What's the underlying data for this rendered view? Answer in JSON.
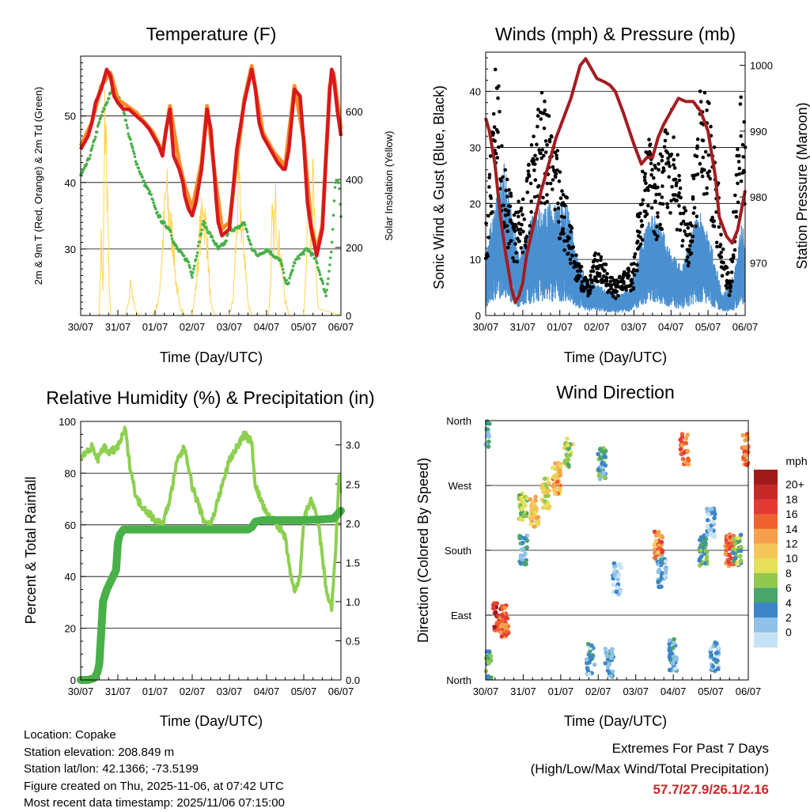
{
  "colors": {
    "temp_2m": "#d7191c",
    "temp_9m": "#fb8c28",
    "dewpoint": "#48b048",
    "solar": "#ffd54f",
    "wind": "#4a90d0",
    "gust": "#000000",
    "pressure": "#a31d21",
    "rh": "#8dd050",
    "precip": "#48b048",
    "extremes": "#c62828"
  },
  "x_ticks": [
    "30/07",
    "31/07",
    "01/07",
    "02/07",
    "03/07",
    "04/07",
    "05/07",
    "06/07"
  ],
  "x_label": "Time (Day/UTC)",
  "chart_data": [
    {
      "id": "temperature",
      "type": "line",
      "title": "Temperature (F)",
      "ylabel_left": "2m & 9m T (Red, Orange) & 2m Td (Green)",
      "ylabel_right": "Solar Insolation (Yellow)",
      "xlim": [
        0,
        7
      ],
      "ylim_left": [
        20,
        59
      ],
      "ylim_right": [
        0,
        763
      ],
      "yticks_left": [
        30,
        40,
        50
      ],
      "yticks_right": [
        0,
        200,
        400,
        600
      ],
      "series": [
        {
          "name": "2m T",
          "axis": "left",
          "color": "#d7191c",
          "x": [
            0,
            0.1,
            0.2,
            0.3,
            0.4,
            0.55,
            0.7,
            0.8,
            0.9,
            1.0,
            1.15,
            1.3,
            1.5,
            1.7,
            1.85,
            1.95,
            2.1,
            2.2,
            2.3,
            2.4,
            2.5,
            2.65,
            2.7,
            2.75,
            2.8,
            2.9,
            3.0,
            3.1,
            3.25,
            3.4,
            3.5,
            3.6,
            3.65,
            3.7,
            3.8,
            4.0,
            4.2,
            4.4,
            4.6,
            4.7,
            4.8,
            4.9,
            5.0,
            5.1,
            5.2,
            5.3,
            5.45,
            5.5,
            5.6,
            5.75,
            5.9,
            6.0,
            6.1,
            6.2,
            6.35,
            6.5,
            6.6,
            6.7,
            6.75,
            6.8,
            6.9,
            7.0
          ],
          "y": [
            45,
            46,
            47,
            49,
            52,
            54,
            57,
            56,
            53,
            52,
            51,
            51,
            50,
            49,
            48,
            47,
            45.5,
            44,
            48,
            51,
            44,
            42,
            41,
            40,
            38,
            36,
            35,
            37,
            42,
            51,
            48,
            41,
            37,
            34,
            32,
            33,
            45,
            52,
            57,
            54,
            49,
            47,
            46,
            45,
            44,
            43,
            42,
            42,
            45,
            54,
            53,
            46,
            37,
            33,
            29,
            33,
            44,
            54,
            57,
            56,
            51,
            47
          ]
        },
        {
          "name": "9m T",
          "axis": "left",
          "color": "#fb8c28",
          "x": [
            0,
            0.3,
            0.55,
            0.8,
            1.0,
            1.5,
            1.95,
            2.2,
            2.4,
            2.65,
            2.8,
            3.0,
            3.25,
            3.4,
            3.6,
            3.8,
            4.0,
            4.4,
            4.6,
            4.9,
            5.2,
            5.5,
            5.75,
            6.0,
            6.2,
            6.35,
            6.5,
            6.7,
            6.8,
            7.0
          ],
          "y": [
            45.5,
            49,
            54.5,
            56.5,
            52.5,
            50.5,
            47.5,
            44.5,
            51.5,
            43,
            39.5,
            36,
            43,
            51.5,
            41.5,
            33,
            34,
            52.5,
            57.5,
            47.5,
            44.5,
            42.5,
            54.5,
            46.5,
            33.5,
            30,
            33.5,
            54.5,
            56.5,
            48
          ]
        },
        {
          "name": "2m Td",
          "axis": "left",
          "color": "#48b048",
          "x": [
            0,
            0.1,
            0.25,
            0.4,
            0.55,
            0.7,
            0.85,
            1.0,
            1.15,
            1.3,
            1.5,
            1.7,
            1.9,
            2.0,
            2.2,
            2.4,
            2.5,
            2.6,
            2.75,
            2.9,
            3.0,
            3.15,
            3.3,
            3.5,
            3.7,
            3.9,
            4.0,
            4.2,
            4.4,
            4.5,
            4.6,
            4.8,
            5.0,
            5.2,
            5.4,
            5.5,
            5.6,
            5.75,
            5.9,
            6.1,
            6.25,
            6.35,
            6.5,
            6.6,
            6.75,
            6.85,
            6.95,
            7.0
          ],
          "y": [
            41,
            42,
            44,
            47,
            50,
            52,
            54,
            53,
            51,
            47,
            43,
            40,
            38,
            36,
            34,
            33,
            31,
            30,
            29,
            28,
            26,
            30,
            34,
            32,
            30,
            31,
            33,
            33,
            34,
            32,
            30,
            29,
            30,
            29,
            28,
            25,
            25,
            28,
            29,
            30,
            29,
            28,
            25,
            23,
            30,
            40,
            40,
            35
          ]
        },
        {
          "name": "Solar",
          "axis": "right",
          "color": "#ffd54f",
          "x": [
            0,
            0.5,
            0.55,
            0.6,
            0.65,
            0.7,
            0.75,
            0.8,
            0.9,
            1.0,
            1.2,
            1.3,
            1.35,
            1.4,
            1.5,
            1.6,
            1.95,
            2.1,
            2.2,
            2.3,
            2.4,
            2.5,
            2.55,
            2.65,
            2.8,
            3.0,
            3.1,
            3.2,
            3.3,
            3.4,
            3.45,
            3.5,
            3.6,
            3.8,
            4.0,
            4.1,
            4.2,
            4.25,
            4.3,
            4.35,
            4.4,
            4.5,
            4.6,
            4.8,
            5.05,
            5.1,
            5.15,
            5.2,
            5.25,
            5.3,
            5.4,
            5.5,
            5.6,
            5.8,
            6.0,
            6.05,
            6.1,
            6.15,
            6.2,
            6.25,
            6.3,
            6.35,
            6.4,
            7.0
          ],
          "y": [
            0,
            0,
            300,
            80,
            750,
            600,
            200,
            0,
            0,
            0,
            0,
            50,
            150,
            60,
            10,
            0,
            0,
            60,
            250,
            480,
            350,
            270,
            150,
            40,
            0,
            0,
            100,
            300,
            400,
            300,
            150,
            40,
            0,
            0,
            0,
            60,
            330,
            500,
            380,
            300,
            250,
            50,
            0,
            0,
            0,
            100,
            350,
            300,
            420,
            300,
            200,
            60,
            0,
            0,
            0,
            150,
            380,
            450,
            300,
            520,
            280,
            100,
            20,
            0
          ]
        }
      ]
    },
    {
      "id": "winds",
      "type": "scatter",
      "title": "Winds (mph) & Pressure (mb)",
      "ylabel_left": "Sonic Wind & Gust (Blue, Black)",
      "ylabel_right": "Station Pressure (Maroon)",
      "xlim": [
        0,
        7
      ],
      "ylim_left": [
        0,
        47
      ],
      "ylim_right": [
        962,
        1002
      ],
      "yticks_left": [
        0,
        10,
        20,
        30,
        40
      ],
      "yticks_right": [
        970,
        980,
        990,
        1000
      ],
      "series": [
        {
          "name": "Sonic Wind",
          "axis": "left",
          "color": "#4a90d0",
          "type": "band",
          "x": [
            0,
            0.3,
            0.5,
            0.9,
            1.3,
            1.7,
            2.2,
            2.5,
            2.8,
            3.2,
            3.6,
            3.9,
            4.3,
            4.6,
            5.0,
            5.3,
            5.6,
            5.8,
            6.1,
            6.4,
            6.7,
            6.9,
            7.0
          ],
          "y": [
            9,
            18,
            22,
            9,
            15,
            16,
            16,
            8,
            5,
            4,
            3,
            4,
            13,
            15,
            9,
            7,
            13,
            15,
            10,
            3,
            6,
            13,
            12
          ]
        },
        {
          "name": "Gust",
          "axis": "left",
          "color": "#000000",
          "type": "dots",
          "x": [
            0,
            0.2,
            0.3,
            0.4,
            0.5,
            0.6,
            0.8,
            1.0,
            1.3,
            1.5,
            1.7,
            1.8,
            2.0,
            2.3,
            2.5,
            2.8,
            3.0,
            3.2,
            3.5,
            3.7,
            4.0,
            4.2,
            4.4,
            4.6,
            4.8,
            5.0,
            5.3,
            5.5,
            5.7,
            5.9,
            6.2,
            6.4,
            6.6,
            6.8,
            6.9,
            7.0
          ],
          "y": [
            14,
            30,
            38,
            33,
            24,
            20,
            15,
            18,
            26,
            33,
            29,
            26,
            22,
            14,
            8,
            5,
            10,
            8,
            5,
            6,
            8,
            22,
            28,
            21,
            26,
            30,
            19,
            11,
            30,
            35,
            24,
            10,
            5,
            27,
            32,
            33
          ]
        },
        {
          "name": "Station Pressure",
          "axis": "right",
          "color": "#a31d21",
          "x": [
            0,
            0.1,
            0.25,
            0.4,
            0.55,
            0.7,
            0.8,
            0.9,
            1.0,
            1.1,
            1.3,
            1.5,
            1.7,
            1.9,
            2.1,
            2.3,
            2.45,
            2.55,
            2.7,
            2.9,
            3.0,
            3.2,
            3.35,
            3.5,
            3.7,
            4.0,
            4.2,
            4.35,
            4.5,
            4.65,
            4.8,
            4.9,
            5.0,
            5.1,
            5.2,
            5.4,
            5.6,
            5.8,
            6.0,
            6.2,
            6.3,
            6.5,
            6.65,
            6.8,
            6.9,
            7.0
          ],
          "y": [
            992,
            990,
            985,
            977,
            971,
            966,
            964,
            965,
            967,
            971,
            976,
            981,
            985,
            989,
            992,
            995,
            998,
            1000,
            1001,
            999,
            998,
            997.5,
            997,
            996,
            993,
            988,
            985,
            986,
            986,
            989,
            991,
            992,
            993,
            994,
            995,
            994.5,
            994.5,
            993,
            990,
            983,
            977,
            974,
            973,
            975,
            978,
            981
          ]
        }
      ]
    },
    {
      "id": "humidity",
      "type": "line",
      "title": "Relative Humidity (%) & Precipitation (in)",
      "ylabel": "Percent & Total Rainfall",
      "xlim": [
        0,
        7
      ],
      "ylim_left": [
        0,
        100
      ],
      "ylim_right": [
        0,
        3.3
      ],
      "yticks_left": [
        0,
        20,
        40,
        60,
        80,
        100
      ],
      "yticks_right": [
        "0.0",
        "0.5",
        "1.0",
        "1.5",
        "2.0",
        "2.5",
        "3.0"
      ],
      "series": [
        {
          "name": "RH",
          "axis": "left",
          "color": "#8dd050",
          "x": [
            0,
            0.15,
            0.3,
            0.45,
            0.6,
            0.8,
            1.0,
            1.2,
            1.3,
            1.5,
            1.8,
            2.0,
            2.2,
            2.4,
            2.6,
            2.8,
            3.0,
            3.3,
            3.5,
            3.7,
            4.0,
            4.2,
            4.4,
            4.6,
            4.7,
            5.0,
            5.3,
            5.5,
            5.6,
            5.75,
            5.9,
            6.0,
            6.2,
            6.4,
            6.6,
            6.75,
            6.85,
            6.95,
            7.0
          ],
          "y": [
            86,
            88,
            90,
            85,
            90,
            88,
            90,
            97,
            85,
            70,
            65,
            62,
            60,
            70,
            85,
            90,
            75,
            62,
            60,
            70,
            85,
            90,
            95,
            92,
            75,
            64,
            60,
            55,
            45,
            33,
            40,
            62,
            70,
            60,
            35,
            28,
            48,
            80,
            70
          ]
        },
        {
          "name": "Total Precipitation",
          "axis": "right",
          "color": "#48b048",
          "x": [
            0,
            0.2,
            0.35,
            0.4,
            0.45,
            0.5,
            0.55,
            0.6,
            0.7,
            0.85,
            0.95,
            1.0,
            1.05,
            1.15,
            1.5,
            2.0,
            3.0,
            4.5,
            4.6,
            4.7,
            4.9,
            5.5,
            6.0,
            6.5,
            6.8,
            7.0
          ],
          "y": [
            0,
            0,
            0.02,
            0.05,
            0.1,
            0.2,
            0.6,
            1.0,
            1.15,
            1.3,
            1.4,
            1.75,
            1.85,
            1.92,
            1.92,
            1.92,
            1.92,
            1.92,
            1.95,
            2.02,
            2.04,
            2.04,
            2.04,
            2.05,
            2.06,
            2.16
          ]
        }
      ]
    },
    {
      "id": "direction",
      "type": "scatter",
      "title": "Wind Direction",
      "ylabel": "Direction (Colored By Speed)",
      "xlim": [
        0,
        7
      ],
      "ylim": [
        0,
        360
      ],
      "yticks": [
        {
          "value": 0,
          "label": "North"
        },
        {
          "value": 90,
          "label": "East"
        },
        {
          "value": 180,
          "label": "South"
        },
        {
          "value": 270,
          "label": "West"
        },
        {
          "value": 360,
          "label": "North"
        }
      ],
      "colorbar_title": "mph",
      "colorbar_labels": [
        "20+",
        "18",
        "16",
        "14",
        "12",
        "10",
        "8",
        "6",
        "4",
        "2",
        "0"
      ],
      "colorbar_colors": [
        "#a01a1a",
        "#c62828",
        "#e53935",
        "#f0612f",
        "#f6a04d",
        "#f5c75a",
        "#e5e05a",
        "#92c850",
        "#4aa56a",
        "#3d85c8",
        "#8fc2e8",
        "#c6e3f5"
      ],
      "clusters": [
        {
          "x": 0.3,
          "y": 85,
          "speed": 18
        },
        {
          "x": 0.5,
          "y": 82,
          "speed": 16
        },
        {
          "x": 0.0,
          "y": 345,
          "speed": 4
        },
        {
          "x": 0.05,
          "y": 20,
          "speed": 6
        },
        {
          "x": 1.0,
          "y": 240,
          "speed": 8
        },
        {
          "x": 1.0,
          "y": 180,
          "speed": 4
        },
        {
          "x": 1.3,
          "y": 235,
          "speed": 12
        },
        {
          "x": 1.6,
          "y": 260,
          "speed": 10
        },
        {
          "x": 1.9,
          "y": 280,
          "speed": 13
        },
        {
          "x": 2.2,
          "y": 315,
          "speed": 9
        },
        {
          "x": 2.8,
          "y": 30,
          "speed": 3
        },
        {
          "x": 3.3,
          "y": 25,
          "speed": 3
        },
        {
          "x": 3.1,
          "y": 300,
          "speed": 5
        },
        {
          "x": 3.5,
          "y": 140,
          "speed": 2
        },
        {
          "x": 4.6,
          "y": 185,
          "speed": 15
        },
        {
          "x": 4.7,
          "y": 150,
          "speed": 3
        },
        {
          "x": 5.0,
          "y": 35,
          "speed": 3
        },
        {
          "x": 5.3,
          "y": 320,
          "speed": 16
        },
        {
          "x": 5.8,
          "y": 180,
          "speed": 6
        },
        {
          "x": 6.1,
          "y": 30,
          "speed": 3
        },
        {
          "x": 6.5,
          "y": 180,
          "speed": 16
        },
        {
          "x": 6.7,
          "y": 180,
          "speed": 7
        },
        {
          "x": 6.95,
          "y": 320,
          "speed": 16
        },
        {
          "x": 6.0,
          "y": 220,
          "speed": 2
        }
      ]
    }
  ],
  "info": {
    "location": "Location: Copake",
    "elevation": "Station elevation: 208.849 m",
    "latlon": "Station lat/lon: 42.1366; -73.5199",
    "created": "Figure created on Thu, 2025-11-06, at 07:42 UTC",
    "recent": "Most recent data timestamp: 2025/11/06 07:15:00"
  },
  "extremes": {
    "title": "Extremes For Past 7 Days",
    "subtitle": "(High/Low/Max Wind/Total Precipitation)",
    "values": "57.7/27.9/26.1/2.16"
  }
}
